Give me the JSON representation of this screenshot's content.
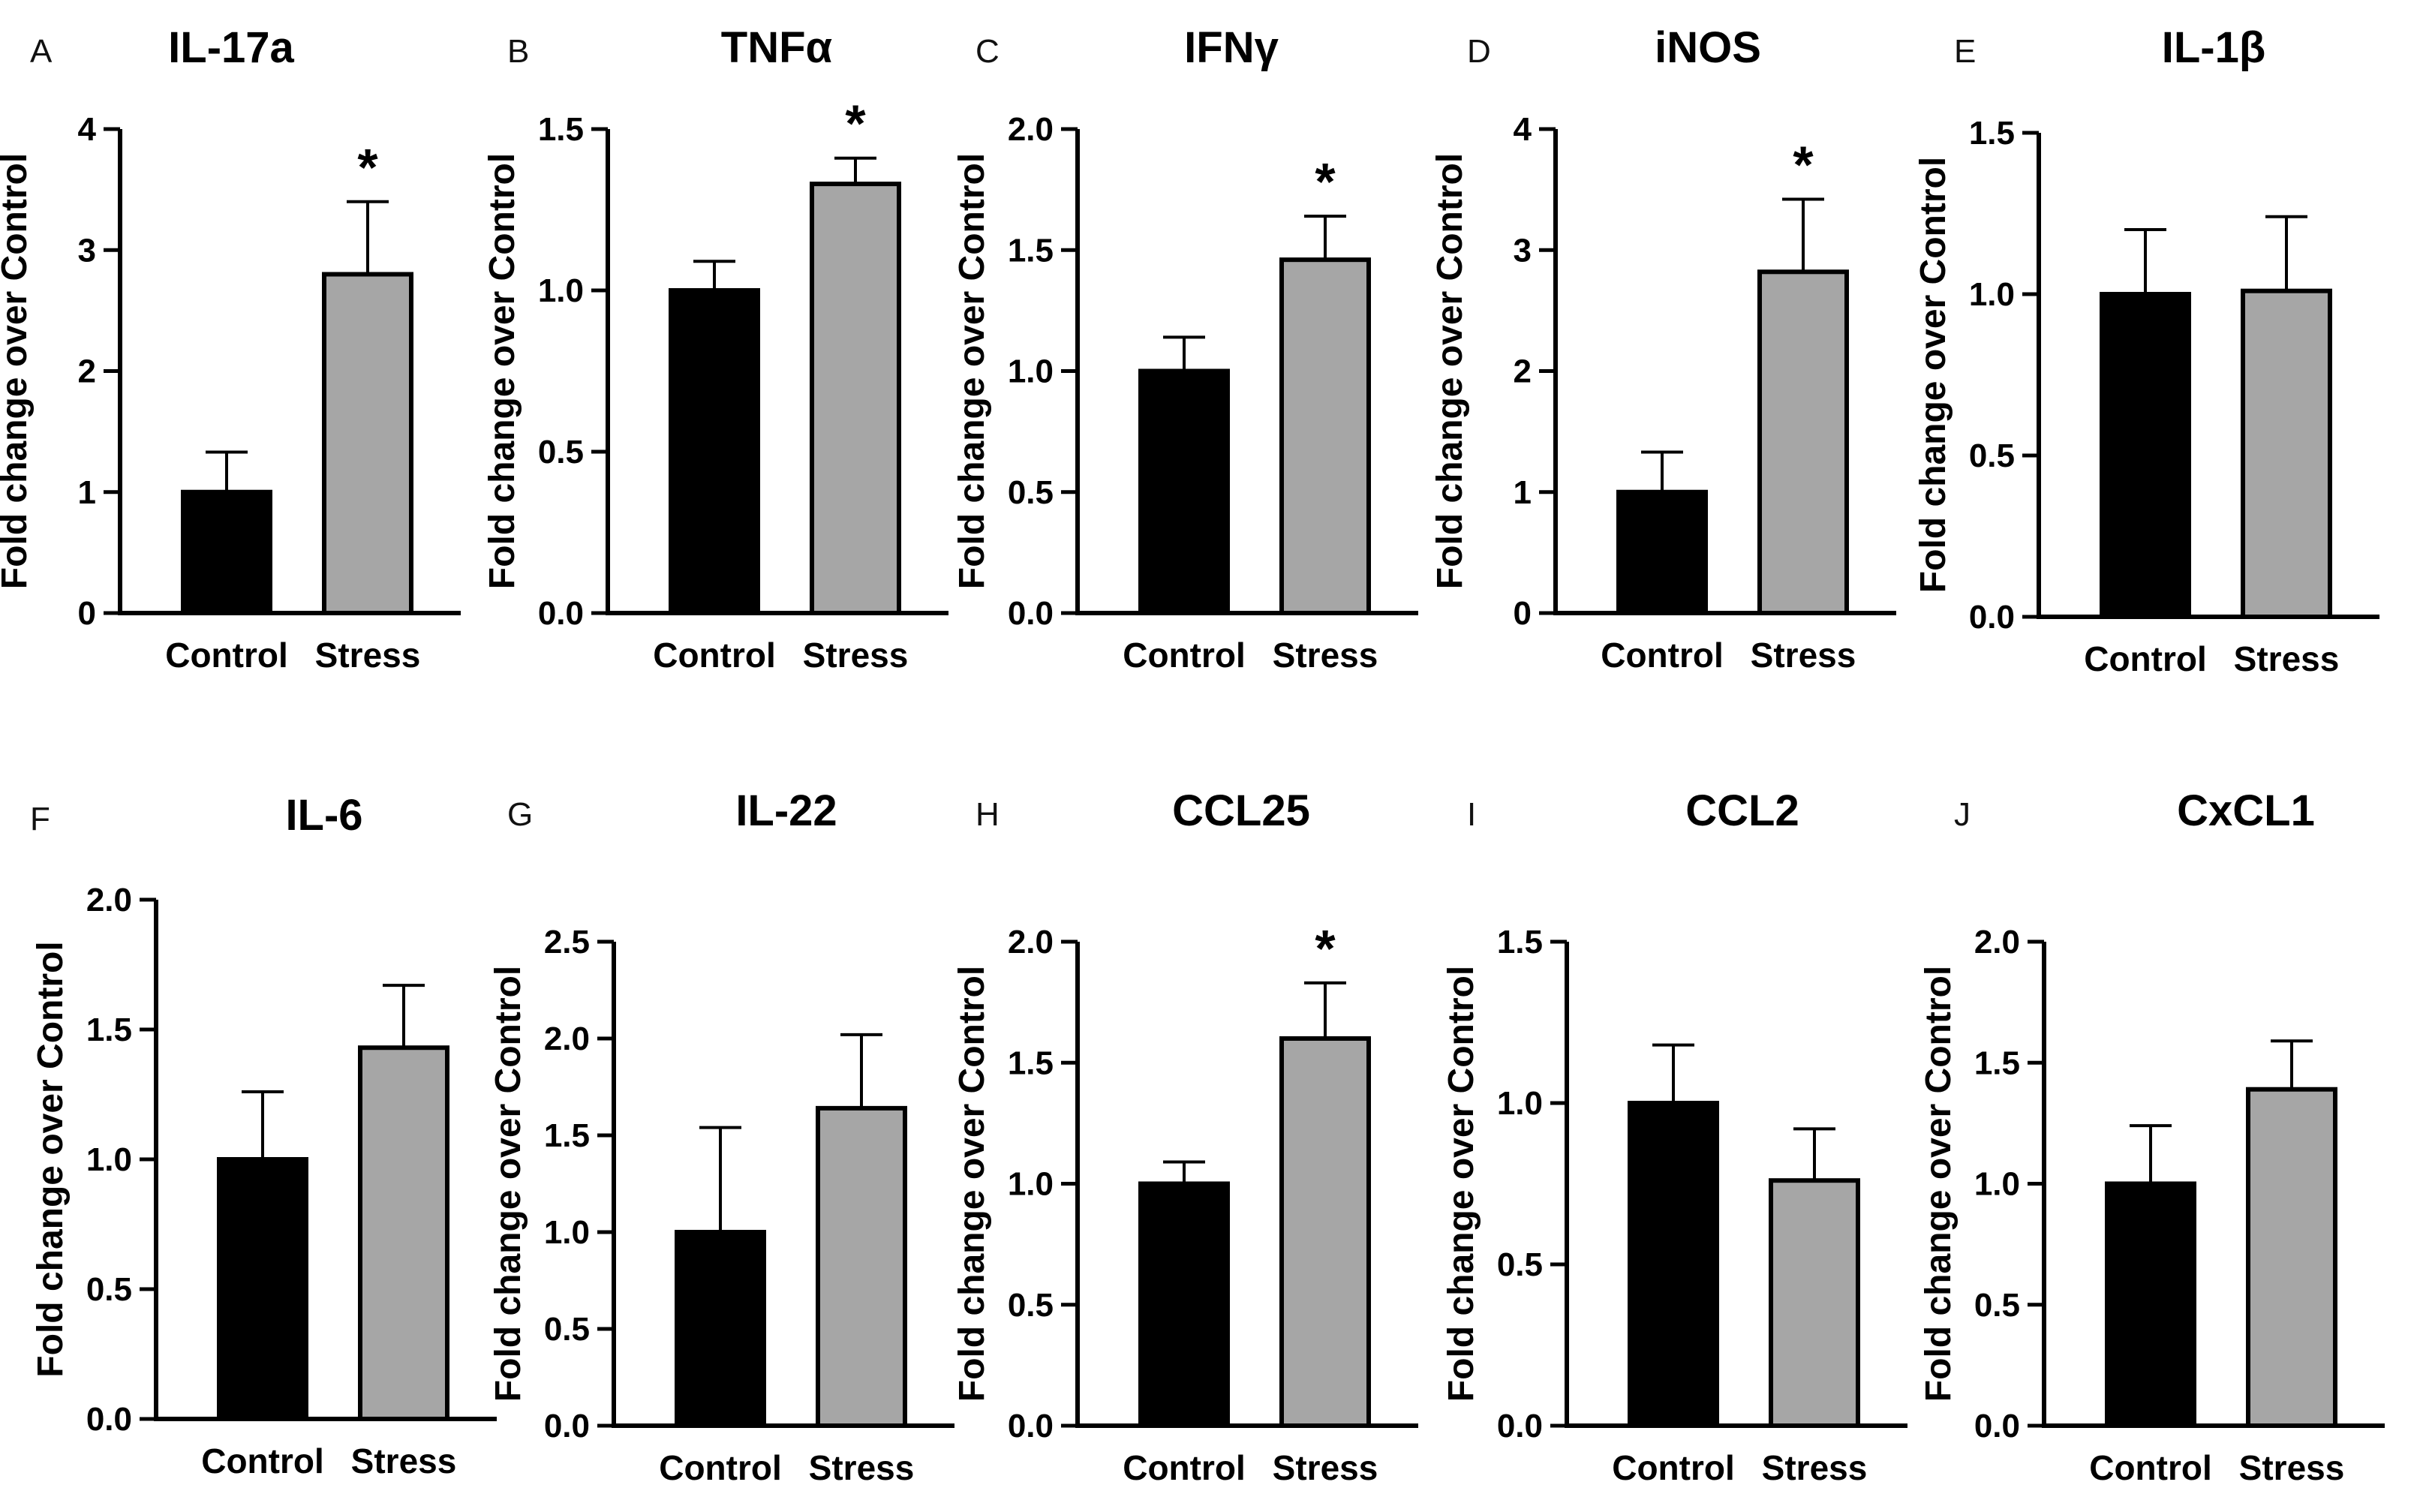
{
  "figure": {
    "ylabel": "Fold change over Control",
    "categories": [
      "Control",
      "Stress"
    ],
    "colors": {
      "control": "#000000",
      "stress": "#a6a6a6",
      "axis": "#000000"
    }
  },
  "chart_data": [
    {
      "letter": "A",
      "title": "IL-17a",
      "type": "bar",
      "categories": [
        "Control",
        "Stress"
      ],
      "values": [
        1.0,
        2.8
      ],
      "errors": [
        0.33,
        0.6
      ],
      "significance": [
        "",
        "*"
      ],
      "ylim": [
        0,
        4
      ],
      "yticks": [
        0,
        1,
        2,
        3,
        4
      ],
      "ytick_labels": [
        "0",
        "1",
        "2",
        "3",
        "4"
      ],
      "ylabel": "Fold change over Control"
    },
    {
      "letter": "B",
      "title": "TNFα",
      "type": "bar",
      "categories": [
        "Control",
        "Stress"
      ],
      "values": [
        1.0,
        1.33
      ],
      "errors": [
        0.09,
        0.08
      ],
      "significance": [
        "",
        "*"
      ],
      "ylim": [
        0,
        1.5
      ],
      "yticks": [
        0,
        0.5,
        1.0,
        1.5
      ],
      "ytick_labels": [
        "0.0",
        "0.5",
        "1.0",
        "1.5"
      ],
      "ylabel": "Fold change over Control"
    },
    {
      "letter": "C",
      "title": "IFNγ",
      "type": "bar",
      "categories": [
        "Control",
        "Stress"
      ],
      "values": [
        1.0,
        1.46
      ],
      "errors": [
        0.14,
        0.18
      ],
      "significance": [
        "",
        "*"
      ],
      "ylim": [
        0,
        2.0
      ],
      "yticks": [
        0,
        0.5,
        1.0,
        1.5,
        2.0
      ],
      "ytick_labels": [
        "0.0",
        "0.5",
        "1.0",
        "1.5",
        "2.0"
      ],
      "ylabel": "Fold change over Control"
    },
    {
      "letter": "D",
      "title": "iNOS",
      "type": "bar",
      "categories": [
        "Control",
        "Stress"
      ],
      "values": [
        1.0,
        2.82
      ],
      "errors": [
        0.33,
        0.6
      ],
      "significance": [
        "",
        "*"
      ],
      "ylim": [
        0,
        4
      ],
      "yticks": [
        0,
        1,
        2,
        3,
        4
      ],
      "ytick_labels": [
        "0",
        "1",
        "2",
        "3",
        "4"
      ],
      "ylabel": "Fold change over Control"
    },
    {
      "letter": "E",
      "title": "IL-1β",
      "type": "bar",
      "categories": [
        "Control",
        "Stress"
      ],
      "values": [
        1.0,
        1.01
      ],
      "errors": [
        0.2,
        0.23
      ],
      "significance": [
        "",
        ""
      ],
      "ylim": [
        0,
        1.5
      ],
      "yticks": [
        0,
        0.5,
        1.0,
        1.5
      ],
      "ytick_labels": [
        "0.0",
        "0.5",
        "1.0",
        "1.5"
      ],
      "ylabel": "Fold change over Control"
    },
    {
      "letter": "F",
      "title": "IL-6",
      "type": "bar",
      "categories": [
        "Control",
        "Stress"
      ],
      "values": [
        1.0,
        1.43
      ],
      "errors": [
        0.26,
        0.24
      ],
      "significance": [
        "",
        ""
      ],
      "ylim": [
        0,
        2.0
      ],
      "yticks": [
        0,
        0.5,
        1.0,
        1.5,
        2.0
      ],
      "ytick_labels": [
        "0.0",
        "0.5",
        "1.0",
        "1.5",
        "2.0"
      ],
      "ylabel": "Fold change over Control"
    },
    {
      "letter": "G",
      "title": "IL-22",
      "type": "bar",
      "categories": [
        "Control",
        "Stress"
      ],
      "values": [
        1.0,
        1.64
      ],
      "errors": [
        0.54,
        0.38
      ],
      "significance": [
        "",
        ""
      ],
      "ylim": [
        0,
        2.5
      ],
      "yticks": [
        0,
        0.5,
        1.0,
        1.5,
        2.0,
        2.5
      ],
      "ytick_labels": [
        "0.0",
        "0.5",
        "1.0",
        "1.5",
        "2.0",
        "2.5"
      ],
      "ylabel": "Fold change over Control"
    },
    {
      "letter": "H",
      "title": "CCL25",
      "type": "bar",
      "categories": [
        "Control",
        "Stress"
      ],
      "values": [
        1.0,
        1.6
      ],
      "errors": [
        0.09,
        0.23
      ],
      "significance": [
        "",
        "*"
      ],
      "ylim": [
        0,
        2.0
      ],
      "yticks": [
        0,
        0.5,
        1.0,
        1.5,
        2.0
      ],
      "ytick_labels": [
        "0.0",
        "0.5",
        "1.0",
        "1.5",
        "2.0"
      ],
      "ylabel": "Fold change over Control"
    },
    {
      "letter": "I",
      "title": "CCL2",
      "type": "bar",
      "categories": [
        "Control",
        "Stress"
      ],
      "values": [
        1.0,
        0.76
      ],
      "errors": [
        0.18,
        0.16
      ],
      "significance": [
        "",
        ""
      ],
      "ylim": [
        0,
        1.5
      ],
      "yticks": [
        0,
        0.5,
        1.0,
        1.5
      ],
      "ytick_labels": [
        "0.0",
        "0.5",
        "1.0",
        "1.5"
      ],
      "ylabel": "Fold change over Control"
    },
    {
      "letter": "J",
      "title": "CxCL1",
      "type": "bar",
      "categories": [
        "Control",
        "Stress"
      ],
      "values": [
        1.0,
        1.39
      ],
      "errors": [
        0.24,
        0.2
      ],
      "significance": [
        "",
        ""
      ],
      "ylim": [
        0,
        2.0
      ],
      "yticks": [
        0,
        0.5,
        1.0,
        1.5,
        2.0
      ],
      "ytick_labels": [
        "0.0",
        "0.5",
        "1.0",
        "1.5",
        "2.0"
      ],
      "ylabel": "Fold change over Control"
    }
  ]
}
